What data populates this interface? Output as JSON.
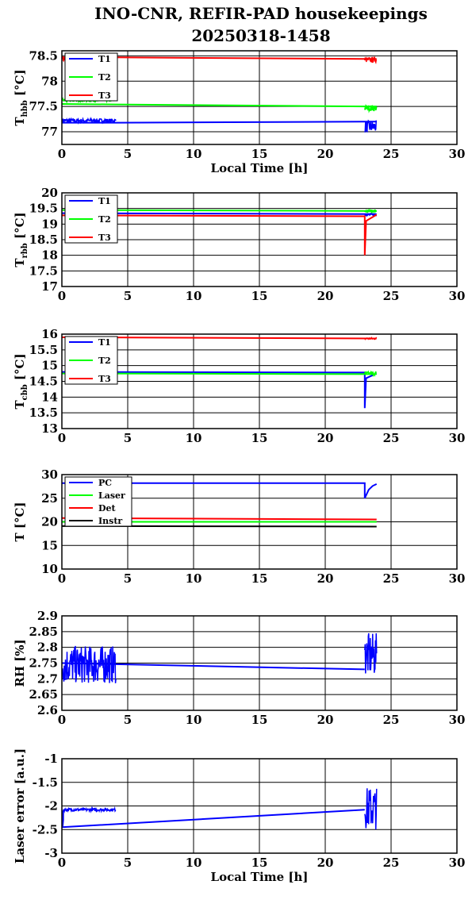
{
  "title": {
    "line1": "INO-CNR, REFIR-PAD housekeepings",
    "line2": "20250318-1458"
  },
  "colors": {
    "T1": "#0000ff",
    "T2": "#00ff00",
    "T3": "#ff0000",
    "PC": "#0000ff",
    "Laser": "#00ff00",
    "Det": "#ff0000",
    "Instr": "#000000"
  },
  "chart_data": [
    {
      "type": "line",
      "ylabel": {
        "main": "T",
        "sub": "hbb",
        "unit": " [°C]"
      },
      "xlabel": "Local Time [h]",
      "xlim": [
        0,
        30
      ],
      "xticks": [
        "0",
        "5",
        "10",
        "15",
        "20",
        "25",
        "30"
      ],
      "ylim": [
        76.75,
        78.6
      ],
      "yticks": [
        77,
        77.5,
        78,
        78.5
      ],
      "ytick_labels": [
        "77",
        "77.5",
        "78",
        "78.5"
      ],
      "grid": true,
      "legend": "top-left",
      "series": [
        {
          "name": "T1",
          "color": "#0000ff",
          "x": [
            0,
            4.1,
            23.0,
            23.9
          ],
          "y": [
            77.18,
            77.18,
            77.2,
            77.2
          ],
          "noisy": [
            [
              0,
              4.1,
              77.22,
              0.04
            ],
            [
              23.0,
              23.9,
              77.1,
              0.12
            ]
          ]
        },
        {
          "name": "T2",
          "color": "#00ff00",
          "x": [
            0,
            4.1,
            23.0,
            23.9
          ],
          "y": [
            77.55,
            77.54,
            77.5,
            77.5
          ],
          "noisy": [
            [
              0,
              4.1,
              77.63,
              0.04
            ],
            [
              23.0,
              23.9,
              77.47,
              0.06
            ]
          ]
        },
        {
          "name": "T3",
          "color": "#ff0000",
          "x": [
            0,
            4.1,
            23.0,
            23.9
          ],
          "y": [
            78.47,
            78.47,
            78.44,
            78.44
          ],
          "noisy": [
            [
              0,
              0.3,
              78.45,
              0.05
            ],
            [
              23.0,
              23.9,
              78.42,
              0.05
            ]
          ]
        }
      ]
    },
    {
      "type": "line",
      "ylabel": {
        "main": "T",
        "sub": "rbb",
        "unit": " [°C]"
      },
      "xlabel": "",
      "xlim": [
        0,
        30
      ],
      "xticks": [
        "0",
        "5",
        "10",
        "15",
        "20",
        "25",
        "30"
      ],
      "ylim": [
        17,
        20
      ],
      "yticks": [
        17,
        17.5,
        18,
        18.5,
        19,
        19.5,
        20
      ],
      "ytick_labels": [
        "17",
        "17.5",
        "18",
        "18.5",
        "19",
        "19.5",
        "20"
      ],
      "grid": true,
      "legend": "top-left",
      "series": [
        {
          "name": "T1",
          "color": "#0000ff",
          "x": [
            0,
            23.9
          ],
          "y": [
            19.35,
            19.32
          ],
          "noisy": [
            [
              23.0,
              23.9,
              19.3,
              0.04
            ]
          ]
        },
        {
          "name": "T2",
          "color": "#00ff00",
          "x": [
            0,
            23.9
          ],
          "y": [
            19.45,
            19.42
          ],
          "noisy": [
            [
              23.0,
              23.9,
              19.42,
              0.04
            ]
          ]
        },
        {
          "name": "T3",
          "color": "#ff0000",
          "x": [
            0,
            23.0,
            23.0,
            23.1,
            23.9
          ],
          "y": [
            19.28,
            19.25,
            18.0,
            19.1,
            19.3
          ],
          "noisy": []
        }
      ]
    },
    {
      "type": "line",
      "ylabel": {
        "main": "T",
        "sub": "cbb",
        "unit": " [°C]"
      },
      "xlabel": "",
      "xlim": [
        0,
        30
      ],
      "xticks": [
        "0",
        "5",
        "10",
        "15",
        "20",
        "25",
        "30"
      ],
      "ylim": [
        13,
        16
      ],
      "yticks": [
        13,
        13.5,
        14,
        14.5,
        15,
        15.5,
        16
      ],
      "ytick_labels": [
        "13",
        "13.5",
        "14",
        "14.5",
        "15",
        "15.5",
        "16"
      ],
      "grid": true,
      "legend": "top-left",
      "series": [
        {
          "name": "T1",
          "color": "#0000ff",
          "x": [
            0,
            23.0,
            23.0,
            23.1,
            23.9
          ],
          "y": [
            14.8,
            14.78,
            13.65,
            14.6,
            14.75
          ],
          "noisy": []
        },
        {
          "name": "T2",
          "color": "#00ff00",
          "x": [
            0,
            23.9
          ],
          "y": [
            14.75,
            14.73
          ],
          "noisy": [
            [
              23.0,
              23.9,
              14.75,
              0.06
            ]
          ]
        },
        {
          "name": "T3",
          "color": "#ff0000",
          "x": [
            0,
            23.9
          ],
          "y": [
            15.9,
            15.86
          ],
          "noisy": [
            [
              23.0,
              23.9,
              15.86,
              0.03
            ]
          ]
        }
      ]
    },
    {
      "type": "line",
      "ylabel": {
        "main": "T",
        "sub": "",
        "unit": " [°C]"
      },
      "xlabel": "",
      "xlim": [
        0,
        30
      ],
      "xticks": [
        "0",
        "5",
        "10",
        "15",
        "20",
        "25",
        "30"
      ],
      "ylim": [
        10,
        30
      ],
      "yticks": [
        10,
        15,
        20,
        25,
        30
      ],
      "ytick_labels": [
        "10",
        "15",
        "20",
        "25",
        "30"
      ],
      "grid": true,
      "legend": "top-left",
      "series": [
        {
          "name": "PC",
          "color": "#0000ff",
          "x": [
            0,
            23.0,
            23.0,
            23.3,
            23.6,
            23.9
          ],
          "y": [
            28.2,
            28.2,
            25.0,
            26.8,
            27.6,
            28.0
          ],
          "noisy": []
        },
        {
          "name": "Laser",
          "color": "#00ff00",
          "x": [
            0,
            23.9
          ],
          "y": [
            20.0,
            20.0
          ],
          "noisy": []
        },
        {
          "name": "Det",
          "color": "#ff0000",
          "x": [
            0,
            23.9
          ],
          "y": [
            20.8,
            20.5
          ],
          "noisy": []
        },
        {
          "name": "Instr",
          "color": "#000000",
          "x": [
            0,
            23.9
          ],
          "y": [
            19.1,
            19.0
          ],
          "noisy": []
        }
      ]
    },
    {
      "type": "line",
      "ylabel": {
        "main": "RH [%]",
        "sub": "",
        "unit": ""
      },
      "xlabel": "",
      "xlim": [
        0,
        30
      ],
      "xticks": [
        "0",
        "5",
        "10",
        "15",
        "20",
        "25",
        "30"
      ],
      "ylim": [
        2.6,
        2.9
      ],
      "yticks": [
        2.6,
        2.65,
        2.7,
        2.75,
        2.8,
        2.85,
        2.9
      ],
      "ytick_labels": [
        "2.6",
        "2.65",
        "2.7",
        "2.75",
        "2.8",
        "2.85",
        "2.9"
      ],
      "grid": true,
      "legend": "none",
      "series": [
        {
          "name": "",
          "color": "#0000ff",
          "x": [
            0,
            23.0
          ],
          "y": [
            2.75,
            2.73
          ],
          "noisy": [
            [
              0,
              4.1,
              2.745,
              0.06
            ],
            [
              23.0,
              23.9,
              2.775,
              0.07
            ]
          ]
        }
      ]
    },
    {
      "type": "line",
      "ylabel": {
        "main": "Laser error [a.u.]",
        "sub": "",
        "unit": ""
      },
      "xlabel": "Local Time [h]",
      "xlim": [
        0,
        30
      ],
      "xticks": [
        "0",
        "5",
        "10",
        "15",
        "20",
        "25",
        "30"
      ],
      "ylim": [
        -3,
        -1
      ],
      "yticks": [
        -3,
        -2.5,
        -2,
        -1.5,
        -1
      ],
      "ytick_labels": [
        "-3",
        "-2.5",
        "-2",
        "-1.5",
        "-1"
      ],
      "grid": true,
      "legend": "none",
      "series": [
        {
          "name": "",
          "color": "#0000ff",
          "x": [
            0,
            23.0
          ],
          "y": [
            -2.45,
            -2.08
          ],
          "noisy": [
            [
              0.1,
              4.1,
              -2.08,
              0.03
            ],
            [
              23.0,
              23.9,
              -2.05,
              0.45
            ]
          ]
        },
        {
          "name": "",
          "color": "#0000ff",
          "x": [
            0.05,
            0.1,
            0.1
          ],
          "y": [
            -2.45,
            -2.3,
            -2.1
          ],
          "noisy": []
        }
      ]
    }
  ]
}
